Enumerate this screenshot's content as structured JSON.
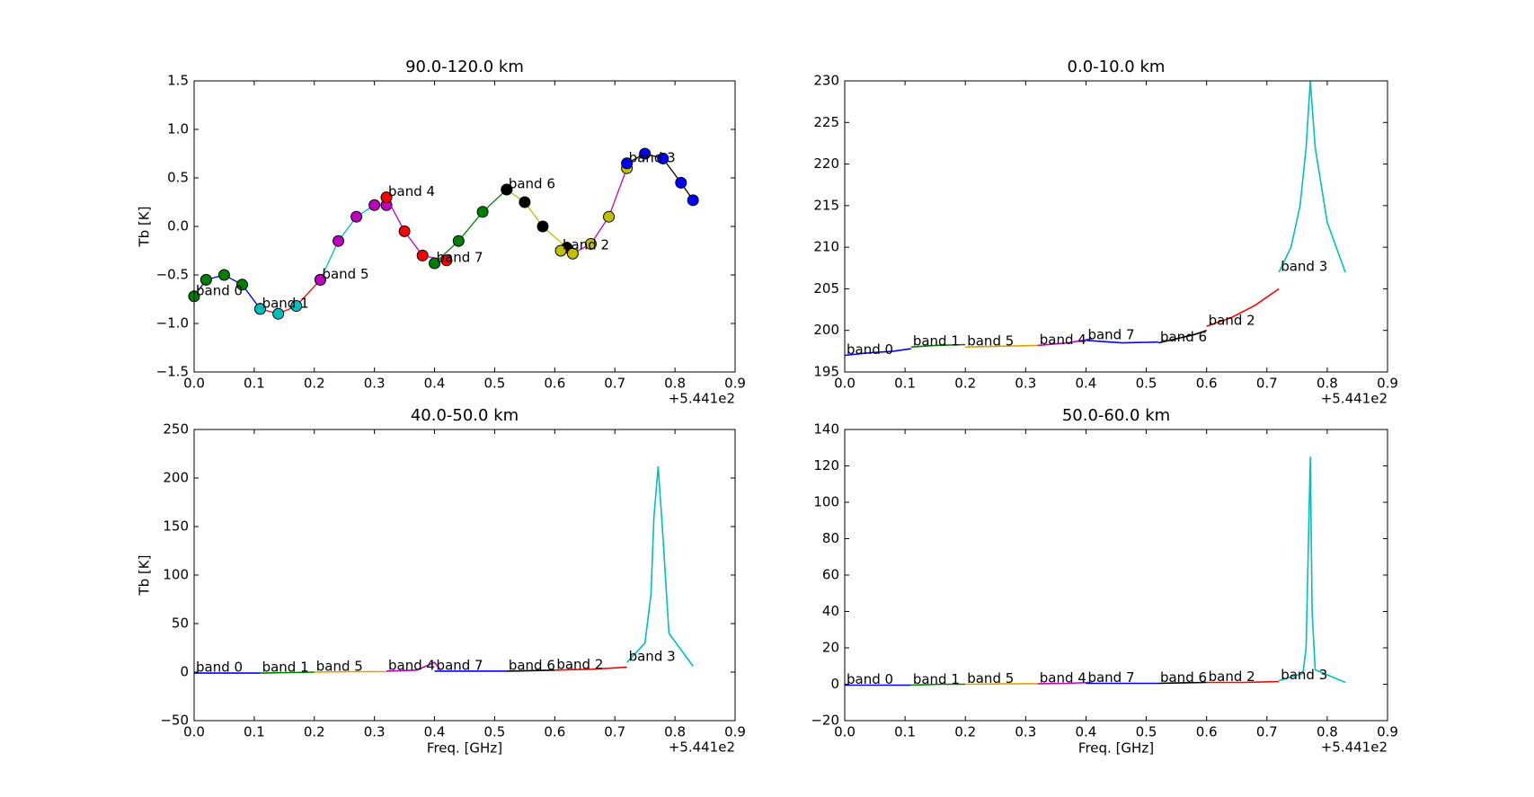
{
  "chart_data": [
    {
      "type": "line",
      "title": "90.0-120.0 km",
      "ylabel": "Tb [K]",
      "x_offset": "+5.441e2",
      "markers": true,
      "xlim": [
        0,
        0.9
      ],
      "ylim": [
        -1.5,
        1.5
      ],
      "xticks": [
        {
          "value": 0,
          "label": "0.0"
        },
        0.1,
        0.2,
        0.3,
        0.4,
        0.5,
        0.6,
        0.7,
        0.8,
        0.9
      ],
      "yticks": [
        {
          "value": -1.5,
          "label": "−1.5"
        },
        {
          "value": -1,
          "label": "−1.0"
        },
        {
          "value": -0.5,
          "label": "−0.5"
        },
        {
          "value": 0,
          "label": "0.0"
        },
        0.5,
        {
          "value": 1,
          "label": "1.0"
        },
        1.5
      ],
      "series": [
        {
          "name": "band 0",
          "color": "#0000ff",
          "marker_color": "#008000",
          "x": [
            0,
            0.02,
            0.05,
            0.08,
            0.11
          ],
          "values": [
            -0.72,
            -0.55,
            -0.5,
            -0.6,
            -0.85
          ]
        },
        {
          "name": "band 1",
          "color": "#ff0000",
          "marker_color": "#00bfbf",
          "x": [
            0.11,
            0.14,
            0.17,
            0.21
          ],
          "values": [
            -0.85,
            -0.9,
            -0.82,
            -0.55
          ]
        },
        {
          "name": "band 5",
          "color": "#00bfbf",
          "marker_color": "#bf00bf",
          "x": [
            0.21,
            0.24,
            0.27,
            0.3,
            0.32
          ],
          "values": [
            -0.55,
            -0.15,
            0.1,
            0.22,
            0.22
          ]
        },
        {
          "name": "band 4",
          "color": "#bf00bf",
          "marker_color": "#ff0000",
          "x": [
            0.32,
            0.35,
            0.38,
            0.42
          ],
          "values": [
            0.3,
            -0.05,
            -0.3,
            -0.35
          ]
        },
        {
          "name": "band 7",
          "color": "#008000",
          "marker_color": "#008000",
          "x": [
            0.4,
            0.44,
            0.48,
            0.52
          ],
          "values": [
            -0.38,
            -0.15,
            0.15,
            0.38
          ]
        },
        {
          "name": "band 6",
          "color": "#bfbf00",
          "marker_color": "#000000",
          "x": [
            0.52,
            0.55,
            0.58,
            0.62
          ],
          "values": [
            0.38,
            0.25,
            0,
            -0.22
          ]
        },
        {
          "name": "band 2",
          "color": "#bf00bf",
          "marker_color": "#bfbf00",
          "x": [
            0.61,
            0.63,
            0.66,
            0.69,
            0.72
          ],
          "values": [
            -0.25,
            -0.28,
            -0.18,
            0.1,
            0.6
          ]
        },
        {
          "name": "band 3",
          "color": "#000000",
          "marker_color": "#0000ff",
          "x": [
            0.72,
            0.75,
            0.78,
            0.81,
            0.83
          ],
          "values": [
            0.65,
            0.75,
            0.7,
            0.45,
            0.27
          ]
        }
      ]
    },
    {
      "type": "line",
      "title": "0.0-10.0 km",
      "x_offset": "+5.441e2",
      "xlim": [
        0,
        0.9
      ],
      "ylim": [
        195,
        230
      ],
      "xticks": [
        {
          "value": 0,
          "label": "0.0"
        },
        0.1,
        0.2,
        0.3,
        0.4,
        0.5,
        0.6,
        0.7,
        0.8,
        0.9
      ],
      "yticks": [
        195,
        200,
        205,
        210,
        215,
        220,
        225,
        230
      ],
      "series": [
        {
          "name": "band 0",
          "color": "#0000ff",
          "x": [
            0,
            0.04,
            0.08,
            0.11
          ],
          "values": [
            197,
            197.3,
            197.5,
            197.8
          ]
        },
        {
          "name": "band 1",
          "color": "#008000",
          "x": [
            0.11,
            0.15,
            0.2
          ],
          "values": [
            198,
            198.2,
            198.3
          ]
        },
        {
          "name": "band 5",
          "color": "#e0a000",
          "x": [
            0.2,
            0.26,
            0.32
          ],
          "values": [
            198,
            198.1,
            198.2
          ]
        },
        {
          "name": "band 4",
          "color": "#bf00bf",
          "x": [
            0.32,
            0.37,
            0.41
          ],
          "values": [
            198.2,
            198.5,
            199
          ]
        },
        {
          "name": "band 7",
          "color": "#0000ff",
          "x": [
            0.4,
            0.46,
            0.52
          ],
          "values": [
            198.8,
            198.5,
            198.6
          ]
        },
        {
          "name": "band 6",
          "color": "#000000",
          "x": [
            0.52,
            0.55,
            0.58,
            0.6
          ],
          "values": [
            198.5,
            199,
            199.5,
            200
          ]
        },
        {
          "name": "band 2",
          "color": "#ff0000",
          "x": [
            0.6,
            0.64,
            0.68,
            0.72
          ],
          "values": [
            200.5,
            201.5,
            203,
            205
          ]
        },
        {
          "name": "band 3",
          "color": "#00bfbf",
          "x": [
            0.72,
            0.74,
            0.755,
            0.765,
            0.772,
            0.78,
            0.8,
            0.83
          ],
          "values": [
            207,
            210,
            215,
            222,
            230,
            222,
            213,
            207
          ]
        }
      ]
    },
    {
      "type": "line",
      "title": "40.0-50.0 km",
      "ylabel": "Tb [K]",
      "xlabel": "Freq. [GHz]",
      "x_offset": "+5.441e2",
      "xlim": [
        0,
        0.9
      ],
      "ylim": [
        -50,
        250
      ],
      "xticks": [
        {
          "value": 0,
          "label": "0.0"
        },
        0.1,
        0.2,
        0.3,
        0.4,
        0.5,
        0.6,
        0.7,
        0.8,
        0.9
      ],
      "yticks": [
        {
          "value": -50,
          "label": "−50"
        },
        0,
        50,
        100,
        150,
        200,
        250
      ],
      "series": [
        {
          "name": "band 0",
          "color": "#0000ff",
          "x": [
            0,
            0.05,
            0.11
          ],
          "values": [
            -1,
            -1,
            -1
          ]
        },
        {
          "name": "band 1",
          "color": "#008000",
          "x": [
            0.11,
            0.16,
            0.2
          ],
          "values": [
            -1,
            -0.5,
            0
          ]
        },
        {
          "name": "band 5",
          "color": "#e0a000",
          "x": [
            0.2,
            0.26,
            0.32
          ],
          "values": [
            0,
            0.5,
            0.5
          ]
        },
        {
          "name": "band 4",
          "color": "#bf00bf",
          "x": [
            0.32,
            0.37,
            0.4,
            0.41
          ],
          "values": [
            1,
            2,
            10,
            2
          ]
        },
        {
          "name": "band 7",
          "color": "#0000ff",
          "x": [
            0.4,
            0.46,
            0.52
          ],
          "values": [
            1,
            1,
            1
          ]
        },
        {
          "name": "band 6",
          "color": "#000000",
          "x": [
            0.52,
            0.56,
            0.6
          ],
          "values": [
            1,
            1.5,
            2
          ]
        },
        {
          "name": "band 2",
          "color": "#ff0000",
          "x": [
            0.6,
            0.66,
            0.72
          ],
          "values": [
            2,
            3,
            5
          ]
        },
        {
          "name": "band 3",
          "color": "#00bfbf",
          "x": [
            0.72,
            0.75,
            0.76,
            0.765,
            0.772,
            0.78,
            0.79,
            0.83
          ],
          "values": [
            10,
            30,
            80,
            160,
            212,
            140,
            40,
            6
          ]
        }
      ]
    },
    {
      "type": "line",
      "title": "50.0-60.0 km",
      "xlabel": "Freq. [GHz]",
      "x_offset": "+5.441e2",
      "xlim": [
        0,
        0.9
      ],
      "ylim": [
        -20,
        140
      ],
      "xticks": [
        {
          "value": 0,
          "label": "0.0"
        },
        0.1,
        0.2,
        0.3,
        0.4,
        0.5,
        0.6,
        0.7,
        0.8,
        0.9
      ],
      "yticks": [
        {
          "value": -20,
          "label": "−20"
        },
        0,
        20,
        40,
        60,
        80,
        100,
        120,
        140
      ],
      "series": [
        {
          "name": "band 0",
          "color": "#0000ff",
          "x": [
            0,
            0.05,
            0.11
          ],
          "values": [
            -0.5,
            -0.5,
            -0.5
          ]
        },
        {
          "name": "band 1",
          "color": "#008000",
          "x": [
            0.11,
            0.16,
            0.2
          ],
          "values": [
            -0.5,
            0,
            0
          ]
        },
        {
          "name": "band 5",
          "color": "#e0a000",
          "x": [
            0.2,
            0.26,
            0.32
          ],
          "values": [
            0,
            0.2,
            0.3
          ]
        },
        {
          "name": "band 4",
          "color": "#bf00bf",
          "x": [
            0.32,
            0.37,
            0.41
          ],
          "values": [
            0.3,
            0.5,
            1
          ]
        },
        {
          "name": "band 7",
          "color": "#0000ff",
          "x": [
            0.4,
            0.46,
            0.52
          ],
          "values": [
            0.5,
            0.5,
            0.5
          ]
        },
        {
          "name": "band 6",
          "color": "#000000",
          "x": [
            0.52,
            0.56,
            0.6
          ],
          "values": [
            0.5,
            0.8,
            1
          ]
        },
        {
          "name": "band 2",
          "color": "#ff0000",
          "x": [
            0.6,
            0.66,
            0.72
          ],
          "values": [
            1,
            1,
            1.5
          ]
        },
        {
          "name": "band 3",
          "color": "#00bfbf",
          "x": [
            0.72,
            0.76,
            0.765,
            0.769,
            0.772,
            0.775,
            0.78,
            0.83
          ],
          "values": [
            2,
            6,
            20,
            80,
            125,
            40,
            8,
            1
          ]
        }
      ]
    }
  ]
}
